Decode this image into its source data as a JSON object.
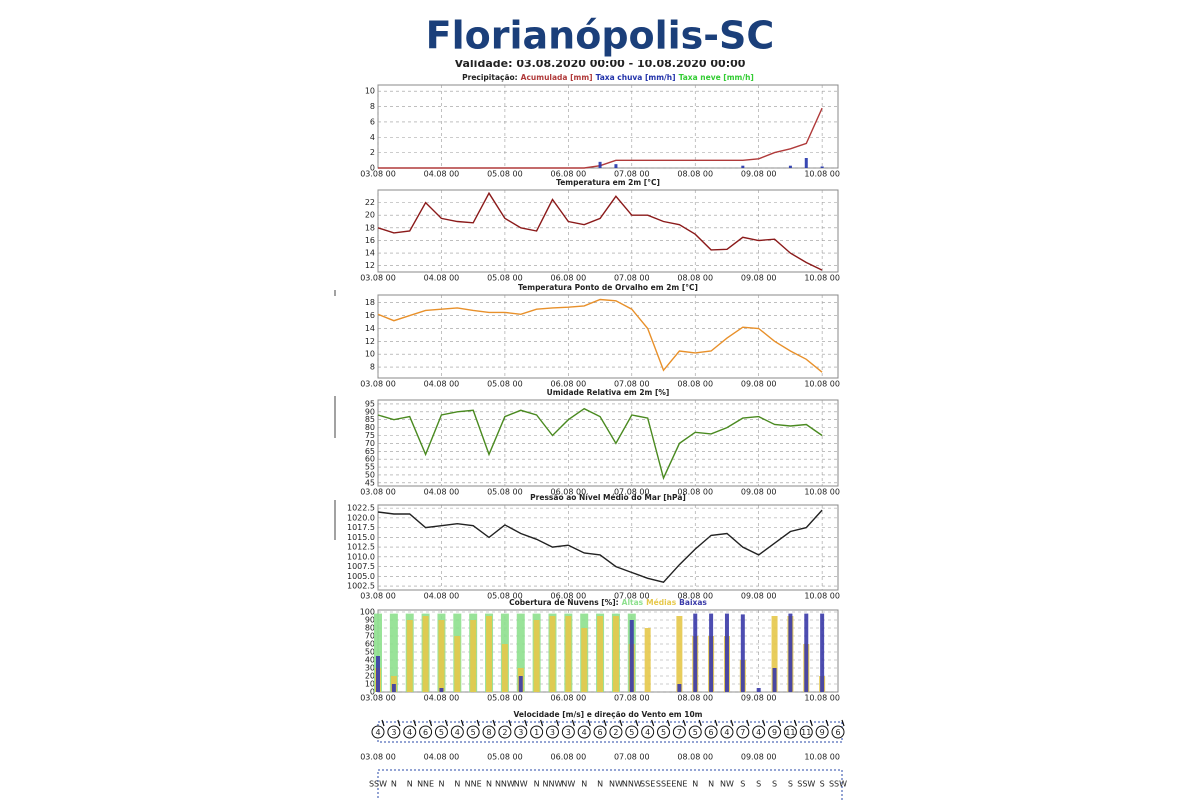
{
  "title": "Florianópolis-SC",
  "subtitle": "Validade: 03.08.2020 00:00 - 10.08.2020 00:00",
  "chart_data": [
    {
      "type": "combo",
      "title": "Precipitação:",
      "legend": "title",
      "grid": true,
      "x": [
        0,
        6,
        12,
        18,
        24,
        30,
        36,
        42,
        48,
        54,
        60,
        66,
        72,
        78,
        84,
        90,
        96,
        102,
        108,
        114,
        120,
        126,
        132,
        138,
        144,
        150,
        156,
        162,
        168
      ],
      "xlim": [
        0,
        174
      ],
      "xticks": [
        {
          "value": 0,
          "label": "03.08 00"
        },
        {
          "value": 24,
          "label": "04.08 00"
        },
        {
          "value": 48,
          "label": "05.08 00"
        },
        {
          "value": 72,
          "label": "06.08 00"
        },
        {
          "value": 96,
          "label": "07.08 00"
        },
        {
          "value": 120,
          "label": "08.08 00"
        },
        {
          "value": 144,
          "label": "09.08 00"
        },
        {
          "value": 168,
          "label": "10.08 00"
        }
      ],
      "ylim": [
        0,
        10.8
      ],
      "yticks": [
        0,
        2,
        4,
        6,
        8,
        10
      ],
      "series": [
        {
          "name": "Acumulada [mm]",
          "color": "#b03a3a",
          "type": "line",
          "values": [
            0,
            0,
            0,
            0,
            0,
            0,
            0,
            0,
            0,
            0,
            0,
            0,
            0,
            0,
            0.3,
            1,
            1,
            1,
            1,
            1,
            1,
            1,
            1,
            1,
            1.2,
            2,
            2.5,
            3.2,
            7.8
          ]
        },
        {
          "name": "Taxa chuva [mm/h]",
          "color": "#2233aa",
          "type": "bar",
          "values": [
            0,
            0,
            0,
            0,
            0,
            0,
            0,
            0,
            0,
            0,
            0,
            0,
            0,
            0,
            0.8,
            0.5,
            0,
            0,
            0,
            0,
            0,
            0,
            0,
            0.3,
            0,
            0,
            0.3,
            1.3,
            0.2
          ]
        },
        {
          "name": "Taxa neve [mm/h]",
          "color": "#33cc33",
          "type": "bar",
          "values": [
            0,
            0,
            0,
            0,
            0,
            0,
            0,
            0,
            0,
            0,
            0,
            0,
            0,
            0,
            0,
            0,
            0,
            0,
            0,
            0,
            0,
            0,
            0,
            0,
            0,
            0,
            0,
            0,
            0
          ]
        }
      ]
    },
    {
      "type": "line",
      "title": "Temperatura em 2m [°C]",
      "grid": true,
      "x": [
        0,
        6,
        12,
        18,
        24,
        30,
        36,
        42,
        48,
        54,
        60,
        66,
        72,
        78,
        84,
        90,
        96,
        102,
        108,
        114,
        120,
        126,
        132,
        138,
        144,
        150,
        156,
        162,
        168
      ],
      "xlim": [
        0,
        174
      ],
      "xticks": [
        {
          "value": 0,
          "label": "03.08 00"
        },
        {
          "value": 24,
          "label": "04.08 00"
        },
        {
          "value": 48,
          "label": "05.08 00"
        },
        {
          "value": 72,
          "label": "06.08 00"
        },
        {
          "value": 96,
          "label": "07.08 00"
        },
        {
          "value": 120,
          "label": "08.08 00"
        },
        {
          "value": 144,
          "label": "09.08 00"
        },
        {
          "value": 168,
          "label": "10.08 00"
        }
      ],
      "ylim": [
        11,
        24
      ],
      "yticks": [
        12,
        14,
        16,
        18,
        20,
        22
      ],
      "series": [
        {
          "color": "#8b1a1a",
          "values": [
            18,
            17.2,
            17.5,
            22,
            19.5,
            19,
            18.8,
            23.5,
            19.5,
            18,
            17.5,
            22.5,
            19,
            18.5,
            19.5,
            23,
            20,
            20,
            19,
            18.5,
            17,
            14.5,
            14.6,
            16.5,
            16,
            16.2,
            14,
            12.5,
            11.3
          ]
        }
      ]
    },
    {
      "type": "line",
      "title": "Temperatura Ponto de Orvalho em 2m [°C]",
      "grid": true,
      "x": [
        0,
        6,
        12,
        18,
        24,
        30,
        36,
        42,
        48,
        54,
        60,
        66,
        72,
        78,
        84,
        90,
        96,
        102,
        108,
        114,
        120,
        126,
        132,
        138,
        144,
        150,
        156,
        162,
        168
      ],
      "xlim": [
        0,
        174
      ],
      "xticks": [
        {
          "value": 0,
          "label": "03.08 00"
        },
        {
          "value": 24,
          "label": "04.08 00"
        },
        {
          "value": 48,
          "label": "05.08 00"
        },
        {
          "value": 72,
          "label": "06.08 00"
        },
        {
          "value": 96,
          "label": "07.08 00"
        },
        {
          "value": 120,
          "label": "08.08 00"
        },
        {
          "value": 144,
          "label": "09.08 00"
        },
        {
          "value": 168,
          "label": "10.08 00"
        }
      ],
      "ylim": [
        6.3,
        19.2
      ],
      "yticks": [
        8,
        10,
        12,
        14,
        16,
        18
      ],
      "series": [
        {
          "color": "#e8902a",
          "values": [
            16.2,
            15.2,
            16,
            16.8,
            17,
            17.2,
            16.8,
            16.5,
            16.5,
            16.2,
            17,
            17.2,
            17.3,
            17.5,
            18.5,
            18.3,
            17,
            14,
            7.5,
            10.5,
            10.2,
            10.5,
            12.5,
            14.2,
            14,
            12,
            10.5,
            9.2,
            7.2
          ]
        }
      ]
    },
    {
      "type": "line",
      "title": "Umidade Relativa em 2m [%]",
      "grid": true,
      "x": [
        0,
        6,
        12,
        18,
        24,
        30,
        36,
        42,
        48,
        54,
        60,
        66,
        72,
        78,
        84,
        90,
        96,
        102,
        108,
        114,
        120,
        126,
        132,
        138,
        144,
        150,
        156,
        162,
        168
      ],
      "xlim": [
        0,
        174
      ],
      "xticks": [
        {
          "value": 0,
          "label": "03.08 00"
        },
        {
          "value": 24,
          "label": "04.08 00"
        },
        {
          "value": 48,
          "label": "05.08 00"
        },
        {
          "value": 72,
          "label": "06.08 00"
        },
        {
          "value": 96,
          "label": "07.08 00"
        },
        {
          "value": 120,
          "label": "08.08 00"
        },
        {
          "value": 144,
          "label": "09.08 00"
        },
        {
          "value": 168,
          "label": "10.08 00"
        }
      ],
      "ylim": [
        43,
        97.5
      ],
      "yticks": [
        45,
        50,
        55,
        60,
        65,
        70,
        75,
        80,
        85,
        90,
        95
      ],
      "series": [
        {
          "color": "#4a8a20",
          "values": [
            88,
            85,
            87,
            63,
            88,
            90,
            91,
            63,
            87,
            91,
            88,
            75,
            85,
            92,
            87,
            70,
            88,
            86,
            48,
            70,
            77,
            76,
            80,
            86,
            87,
            82,
            81,
            82,
            75
          ]
        }
      ]
    },
    {
      "type": "line",
      "title": "Pressão ao Nível Médio do Mar [hPa]",
      "grid": true,
      "x": [
        0,
        6,
        12,
        18,
        24,
        30,
        36,
        42,
        48,
        54,
        60,
        66,
        72,
        78,
        84,
        90,
        96,
        102,
        108,
        114,
        120,
        126,
        132,
        138,
        144,
        150,
        156,
        162,
        168
      ],
      "xlim": [
        0,
        174
      ],
      "xticks": [
        {
          "value": 0,
          "label": "03.08 00"
        },
        {
          "value": 24,
          "label": "04.08 00"
        },
        {
          "value": 48,
          "label": "05.08 00"
        },
        {
          "value": 72,
          "label": "06.08 00"
        },
        {
          "value": 96,
          "label": "07.08 00"
        },
        {
          "value": 120,
          "label": "08.08 00"
        },
        {
          "value": 144,
          "label": "09.08 00"
        },
        {
          "value": 168,
          "label": "10.08 00"
        }
      ],
      "ylim": [
        1001.5,
        1023.3
      ],
      "yticks": [
        1002.5,
        {
          "value": 1005,
          "label": "1005.0"
        },
        1007.5,
        {
          "value": 1010,
          "label": "1010.0"
        },
        1012.5,
        {
          "value": 1015,
          "label": "1015.0"
        },
        1017.5,
        {
          "value": 1020,
          "label": "1020.0"
        },
        1022.5
      ],
      "series": [
        {
          "color": "#222222",
          "values": [
            1021.5,
            1021,
            1021,
            1017.5,
            1018,
            1018.5,
            1018,
            1015,
            1018.2,
            1016,
            1014.5,
            1012.5,
            1013,
            1011,
            1010.5,
            1007.5,
            1006,
            1004.5,
            1003.5,
            1008,
            1012,
            1015.5,
            1016,
            1012.5,
            1010.5,
            1013.5,
            1016.5,
            1017.5,
            1022
          ]
        }
      ]
    },
    {
      "type": "bar",
      "title": "Cobertura de Nuvens [%]:",
      "legend": "title",
      "grid": true,
      "x": [
        0,
        6,
        12,
        18,
        24,
        30,
        36,
        42,
        48,
        54,
        60,
        66,
        72,
        78,
        84,
        90,
        96,
        102,
        108,
        114,
        120,
        126,
        132,
        138,
        144,
        150,
        156,
        162,
        168
      ],
      "xlim": [
        0,
        174
      ],
      "xticks": [
        {
          "value": 0,
          "label": "03.08 00"
        },
        {
          "value": 24,
          "label": "04.08 00"
        },
        {
          "value": 48,
          "label": "05.08 00"
        },
        {
          "value": 72,
          "label": "06.08 00"
        },
        {
          "value": 96,
          "label": "07.08 00"
        },
        {
          "value": 120,
          "label": "08.08 00"
        },
        {
          "value": 144,
          "label": "09.08 00"
        },
        {
          "value": 168,
          "label": "10.08 00"
        }
      ],
      "ylim": [
        0,
        102.5
      ],
      "yticks": [
        0,
        10,
        20,
        30,
        40,
        50,
        60,
        70,
        80,
        90,
        100
      ],
      "series": [
        {
          "name": "Altas",
          "color": "#8ee08e",
          "values": [
            98,
            98,
            98,
            98,
            98,
            98,
            98,
            98,
            98,
            98,
            98,
            98,
            98,
            98,
            98,
            98,
            98,
            0,
            0,
            0,
            0,
            0,
            0,
            0,
            0,
            0,
            0,
            0,
            0
          ]
        },
        {
          "name": "Médias",
          "color": "#e6c84a",
          "values": [
            30,
            20,
            90,
            95,
            90,
            70,
            90,
            95,
            60,
            30,
            90,
            95,
            95,
            80,
            95,
            95,
            60,
            80,
            0,
            95,
            70,
            70,
            70,
            40,
            0,
            95,
            95,
            60,
            20
          ]
        },
        {
          "name": "Baixas",
          "color": "#3a3aa8",
          "values": [
            45,
            10,
            0,
            0,
            5,
            0,
            0,
            0,
            0,
            20,
            0,
            0,
            0,
            0,
            0,
            0,
            90,
            0,
            0,
            10,
            98,
            98,
            98,
            97,
            5,
            30,
            98,
            98,
            98
          ]
        }
      ]
    },
    {
      "type": "wind",
      "title": "Velocidade [m/s] e direção do Vento em 10m",
      "x": [
        0,
        6,
        12,
        18,
        24,
        30,
        36,
        42,
        48,
        54,
        60,
        66,
        72,
        78,
        84,
        90,
        96,
        102,
        108,
        114,
        120,
        126,
        132,
        138,
        144,
        150,
        156,
        162,
        168,
        174
      ],
      "xlim": [
        0,
        174
      ],
      "xticks": [
        {
          "value": 0,
          "label": "03.08 00"
        },
        {
          "value": 24,
          "label": "04.08 00"
        },
        {
          "value": 48,
          "label": "05.08 00"
        },
        {
          "value": 72,
          "label": "06.08 00"
        },
        {
          "value": 96,
          "label": "07.08 00"
        },
        {
          "value": 120,
          "label": "08.08 00"
        },
        {
          "value": 144,
          "label": "09.08 00"
        },
        {
          "value": 168,
          "label": "10.08 00"
        }
      ],
      "values": [
        4,
        3,
        4,
        6,
        5,
        4,
        5,
        8,
        2,
        3,
        1,
        3,
        3,
        4,
        6,
        2,
        5,
        4,
        5,
        7,
        5,
        6,
        4,
        7,
        4,
        9,
        11,
        11,
        9,
        6
      ],
      "directions": [
        "SSW",
        "N",
        "N",
        "NNE",
        "N",
        "N",
        "NNE",
        "N",
        "NNW",
        "NW",
        "N",
        "NNW",
        "NW",
        "N",
        "N",
        "NW",
        "NNW",
        "SSE",
        "SSE",
        "ENE",
        "N",
        "N",
        "NW",
        "S",
        "S",
        "S",
        "S",
        "SSW",
        "S",
        "SSW"
      ]
    }
  ]
}
